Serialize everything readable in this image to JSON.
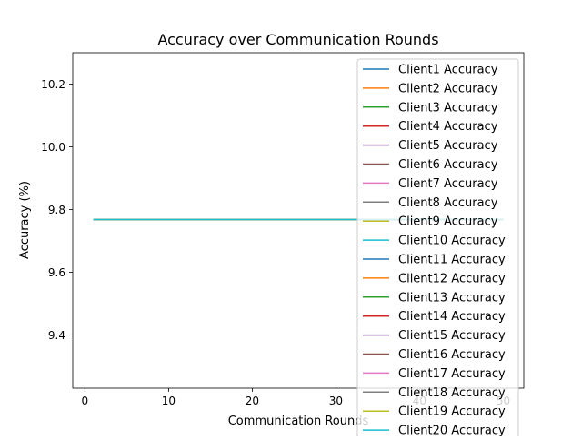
{
  "chart_data": {
    "type": "line",
    "title": "Accuracy over Communication Rounds",
    "xlabel": "Communication Rounds",
    "ylabel": "Accuracy (%)",
    "xlim": [
      -1.45,
      52.45
    ],
    "ylim": [
      9.23,
      10.3
    ],
    "xticks": [
      0,
      10,
      20,
      30,
      40,
      50
    ],
    "yticks": [
      9.4,
      9.6,
      9.8,
      10.0,
      10.2
    ],
    "grid": false,
    "legend_position": "upper right",
    "x": [
      1,
      50
    ],
    "series": [
      {
        "name": "Client1 Accuracy",
        "color": "#1f77b4",
        "values": [
          9.768,
          9.768
        ]
      },
      {
        "name": "Client2 Accuracy",
        "color": "#ff7f0e",
        "values": [
          9.768,
          9.768
        ]
      },
      {
        "name": "Client3 Accuracy",
        "color": "#2ca02c",
        "values": [
          9.768,
          9.768
        ]
      },
      {
        "name": "Client4 Accuracy",
        "color": "#d62728",
        "values": [
          9.768,
          9.768
        ]
      },
      {
        "name": "Client5 Accuracy",
        "color": "#9467bd",
        "values": [
          9.768,
          9.768
        ]
      },
      {
        "name": "Client6 Accuracy",
        "color": "#8c564b",
        "values": [
          9.768,
          9.768
        ]
      },
      {
        "name": "Client7 Accuracy",
        "color": "#e377c2",
        "values": [
          9.768,
          9.768
        ]
      },
      {
        "name": "Client8 Accuracy",
        "color": "#7f7f7f",
        "values": [
          9.768,
          9.768
        ]
      },
      {
        "name": "Client9 Accuracy",
        "color": "#bcbd22",
        "values": [
          9.768,
          9.768
        ]
      },
      {
        "name": "Client10 Accuracy",
        "color": "#17becf",
        "values": [
          9.768,
          9.768
        ]
      },
      {
        "name": "Client11 Accuracy",
        "color": "#1f77b4",
        "values": [
          9.768,
          9.768
        ]
      },
      {
        "name": "Client12 Accuracy",
        "color": "#ff7f0e",
        "values": [
          9.768,
          9.768
        ]
      },
      {
        "name": "Client13 Accuracy",
        "color": "#2ca02c",
        "values": [
          9.768,
          9.768
        ]
      },
      {
        "name": "Client14 Accuracy",
        "color": "#d62728",
        "values": [
          9.768,
          9.768
        ]
      },
      {
        "name": "Client15 Accuracy",
        "color": "#9467bd",
        "values": [
          9.768,
          9.768
        ]
      },
      {
        "name": "Client16 Accuracy",
        "color": "#8c564b",
        "values": [
          9.768,
          9.768
        ]
      },
      {
        "name": "Client17 Accuracy",
        "color": "#e377c2",
        "values": [
          9.768,
          9.768
        ]
      },
      {
        "name": "Client18 Accuracy",
        "color": "#7f7f7f",
        "values": [
          9.768,
          9.768
        ]
      },
      {
        "name": "Client19 Accuracy",
        "color": "#bcbd22",
        "values": [
          9.768,
          9.768
        ]
      },
      {
        "name": "Client20 Accuracy",
        "color": "#17becf",
        "values": [
          9.768,
          9.768
        ]
      }
    ]
  }
}
